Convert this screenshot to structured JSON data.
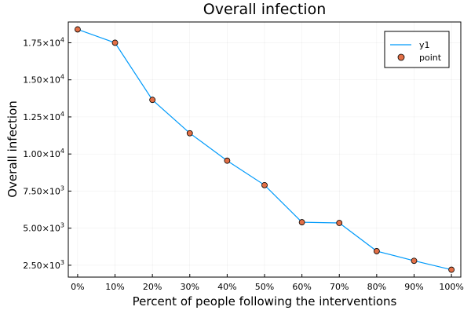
{
  "chart_data": {
    "type": "line",
    "title": "Overall infection",
    "xlabel": "Percent of people following the interventions",
    "ylabel": "Overall infection",
    "x_ticks": [
      "0%",
      "10%",
      "20%",
      "30%",
      "40%",
      "50%",
      "60%",
      "70%",
      "80%",
      "90%",
      "100%"
    ],
    "x": [
      0,
      10,
      20,
      30,
      40,
      50,
      60,
      70,
      80,
      90,
      100
    ],
    "y_ticks": [
      {
        "value": 2500,
        "mantissa": "2.50",
        "exponent": "3"
      },
      {
        "value": 5000,
        "mantissa": "5.00",
        "exponent": "3"
      },
      {
        "value": 7500,
        "mantissa": "7.50",
        "exponent": "3"
      },
      {
        "value": 10000,
        "mantissa": "1.00",
        "exponent": "4"
      },
      {
        "value": 12500,
        "mantissa": "1.25",
        "exponent": "4"
      },
      {
        "value": 15000,
        "mantissa": "1.50",
        "exponent": "4"
      },
      {
        "value": 17500,
        "mantissa": "1.75",
        "exponent": "4"
      }
    ],
    "xlim": [
      -2.5,
      102.5
    ],
    "ylim": [
      1700,
      18900
    ],
    "grid": true,
    "legend_position": "top-right",
    "series": [
      {
        "name": "y1",
        "kind": "line",
        "color": "#009AFA",
        "values": [
          18400,
          17500,
          13650,
          11400,
          9550,
          7900,
          5400,
          5350,
          3450,
          2800,
          2200
        ]
      },
      {
        "name": "point",
        "kind": "scatter",
        "color": "#E26F46",
        "values": [
          18400,
          17500,
          13650,
          11400,
          9550,
          7900,
          5400,
          5350,
          3450,
          2800,
          2200
        ]
      }
    ]
  }
}
